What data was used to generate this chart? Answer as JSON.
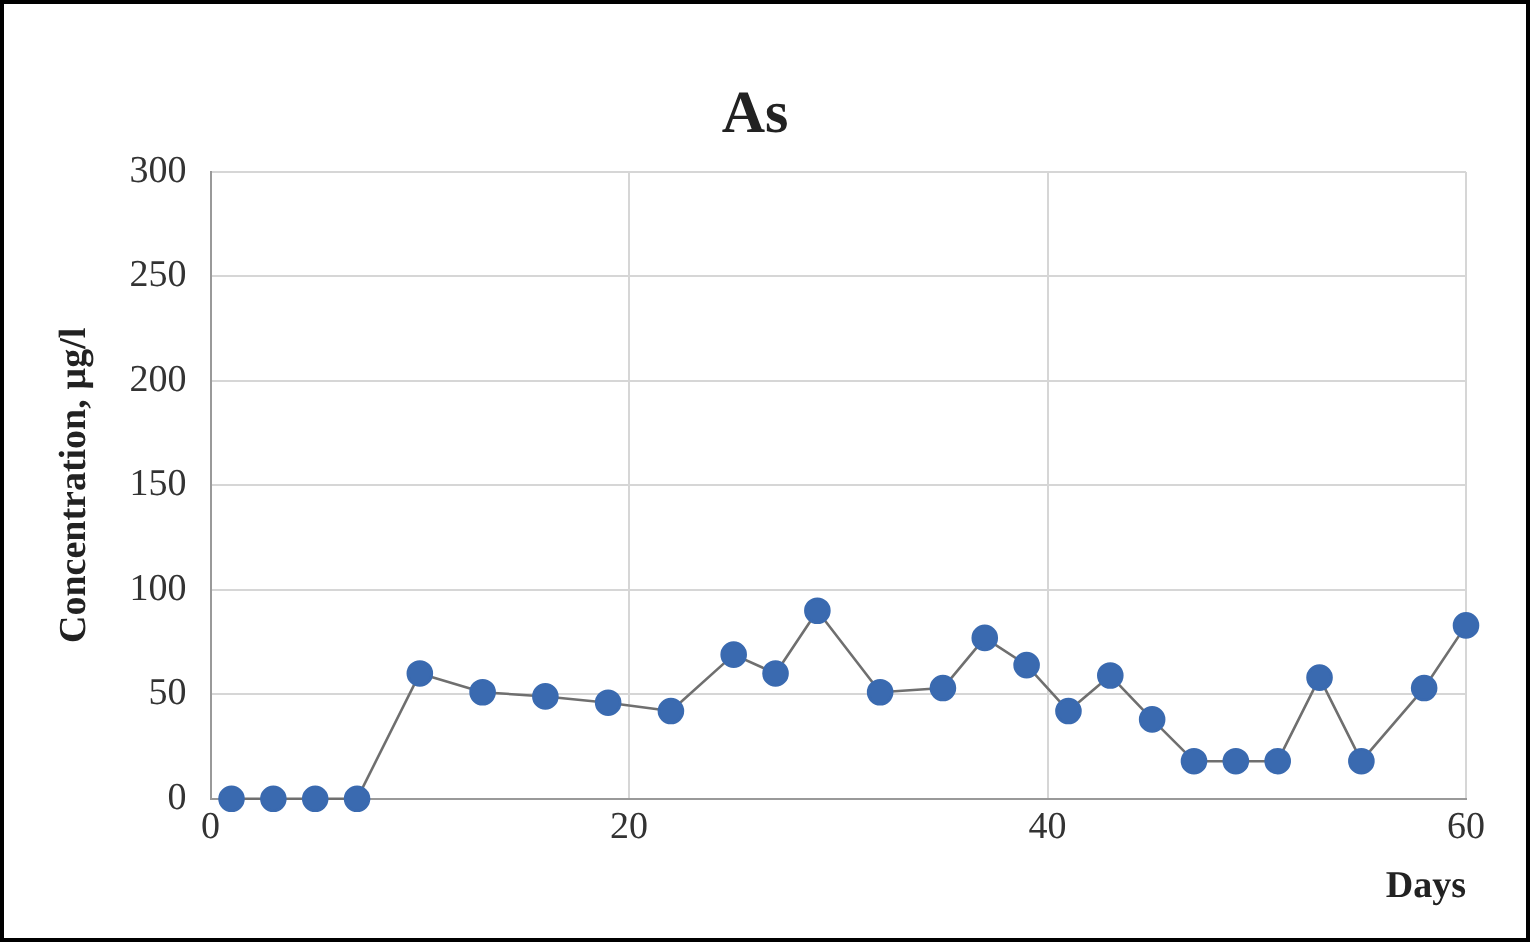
{
  "chart_data": {
    "type": "line",
    "title": "As",
    "xlabel": "Days",
    "ylabel": "Concentration, µg/l",
    "x": [
      1,
      3,
      5,
      7,
      10,
      13,
      16,
      19,
      22,
      25,
      27,
      29,
      32,
      35,
      37,
      39,
      41,
      43,
      45,
      47,
      49,
      51,
      53,
      55,
      58,
      60
    ],
    "series": [
      {
        "color": "#3a6ab0",
        "values": [
          0,
          0,
          0,
          0,
          60,
          51,
          49,
          46,
          42,
          69,
          60,
          90,
          51,
          53,
          77,
          64,
          42,
          59,
          38,
          18,
          18,
          18,
          58,
          18,
          53,
          83
        ]
      }
    ],
    "xlim": [
      0,
      60
    ],
    "xticks": [
      0,
      20,
      40,
      60
    ],
    "ylim": [
      0,
      300
    ],
    "yticks": [
      0,
      50,
      100,
      150,
      200,
      250,
      300
    ],
    "grid": true,
    "legend": false,
    "marker": "circle",
    "line_style": "solid"
  }
}
